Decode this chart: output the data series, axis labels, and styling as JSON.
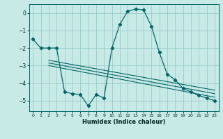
{
  "xlabel": "Humidex (Indice chaleur)",
  "bg_color": "#c8eae6",
  "grid_color": "#99cccc",
  "line_color": "#006666",
  "xlim": [
    -0.5,
    23.5
  ],
  "ylim": [
    -5.6,
    0.5
  ],
  "yticks": [
    0,
    -1,
    -2,
    -3,
    -4,
    -5
  ],
  "xticks": [
    0,
    1,
    2,
    3,
    4,
    5,
    6,
    7,
    8,
    9,
    10,
    11,
    12,
    13,
    14,
    15,
    16,
    17,
    18,
    19,
    20,
    21,
    22,
    23
  ],
  "curve1_x": [
    0,
    1,
    2,
    3,
    4,
    5,
    6,
    7,
    8,
    9,
    10,
    11,
    12,
    13,
    14,
    15,
    16,
    17,
    18,
    19,
    20,
    21,
    22,
    23
  ],
  "curve1_y": [
    -1.5,
    -2.0,
    -2.0,
    -2.0,
    -4.5,
    -4.6,
    -4.65,
    -5.3,
    -4.65,
    -4.85,
    -2.0,
    -0.65,
    0.1,
    0.22,
    0.18,
    -0.75,
    -2.25,
    -3.5,
    -3.8,
    -4.3,
    -4.5,
    -4.7,
    -4.85,
    -5.0
  ],
  "reg_lines": [
    {
      "x": [
        2,
        23
      ],
      "y": [
        -2.7,
        -4.4
      ]
    },
    {
      "x": [
        2,
        23
      ],
      "y": [
        -2.85,
        -4.6
      ]
    },
    {
      "x": [
        2,
        23
      ],
      "y": [
        -3.0,
        -4.8
      ]
    }
  ]
}
